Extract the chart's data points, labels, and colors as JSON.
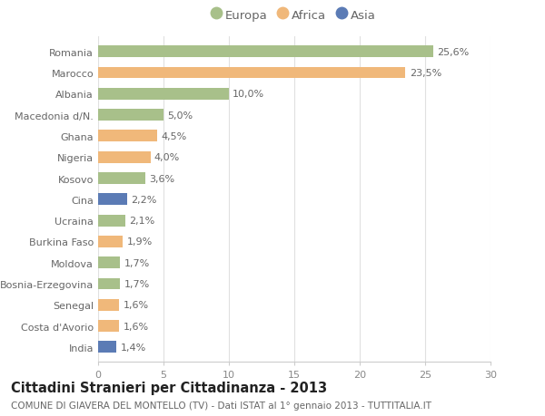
{
  "categories": [
    "Romania",
    "Marocco",
    "Albania",
    "Macedonia d/N.",
    "Ghana",
    "Nigeria",
    "Kosovo",
    "Cina",
    "Ucraina",
    "Burkina Faso",
    "Moldova",
    "Bosnia-Erzegovina",
    "Senegal",
    "Costa d'Avorio",
    "India"
  ],
  "values": [
    25.6,
    23.5,
    10.0,
    5.0,
    4.5,
    4.0,
    3.6,
    2.2,
    2.1,
    1.9,
    1.7,
    1.7,
    1.6,
    1.6,
    1.4
  ],
  "labels": [
    "25,6%",
    "23,5%",
    "10,0%",
    "5,0%",
    "4,5%",
    "4,0%",
    "3,6%",
    "2,2%",
    "2,1%",
    "1,9%",
    "1,7%",
    "1,7%",
    "1,6%",
    "1,6%",
    "1,4%"
  ],
  "continents": [
    "Europa",
    "Africa",
    "Europa",
    "Europa",
    "Africa",
    "Africa",
    "Europa",
    "Asia",
    "Europa",
    "Africa",
    "Europa",
    "Europa",
    "Africa",
    "Africa",
    "Asia"
  ],
  "colors": {
    "Europa": "#a8c08a",
    "Africa": "#f0b87a",
    "Asia": "#5b7bb5"
  },
  "legend": [
    "Europa",
    "Africa",
    "Asia"
  ],
  "legend_colors": [
    "#a8c08a",
    "#f0b87a",
    "#5b7bb5"
  ],
  "title": "Cittadini Stranieri per Cittadinanza - 2013",
  "subtitle": "COMUNE DI GIAVERA DEL MONTELLO (TV) - Dati ISTAT al 1° gennaio 2013 - TUTTITALIA.IT",
  "xlim": [
    0,
    30
  ],
  "xticks": [
    0,
    5,
    10,
    15,
    20,
    25,
    30
  ],
  "background_color": "#ffffff",
  "bar_height": 0.55,
  "label_fontsize": 8.0,
  "tick_fontsize": 8.0,
  "title_fontsize": 10.5,
  "subtitle_fontsize": 7.5
}
